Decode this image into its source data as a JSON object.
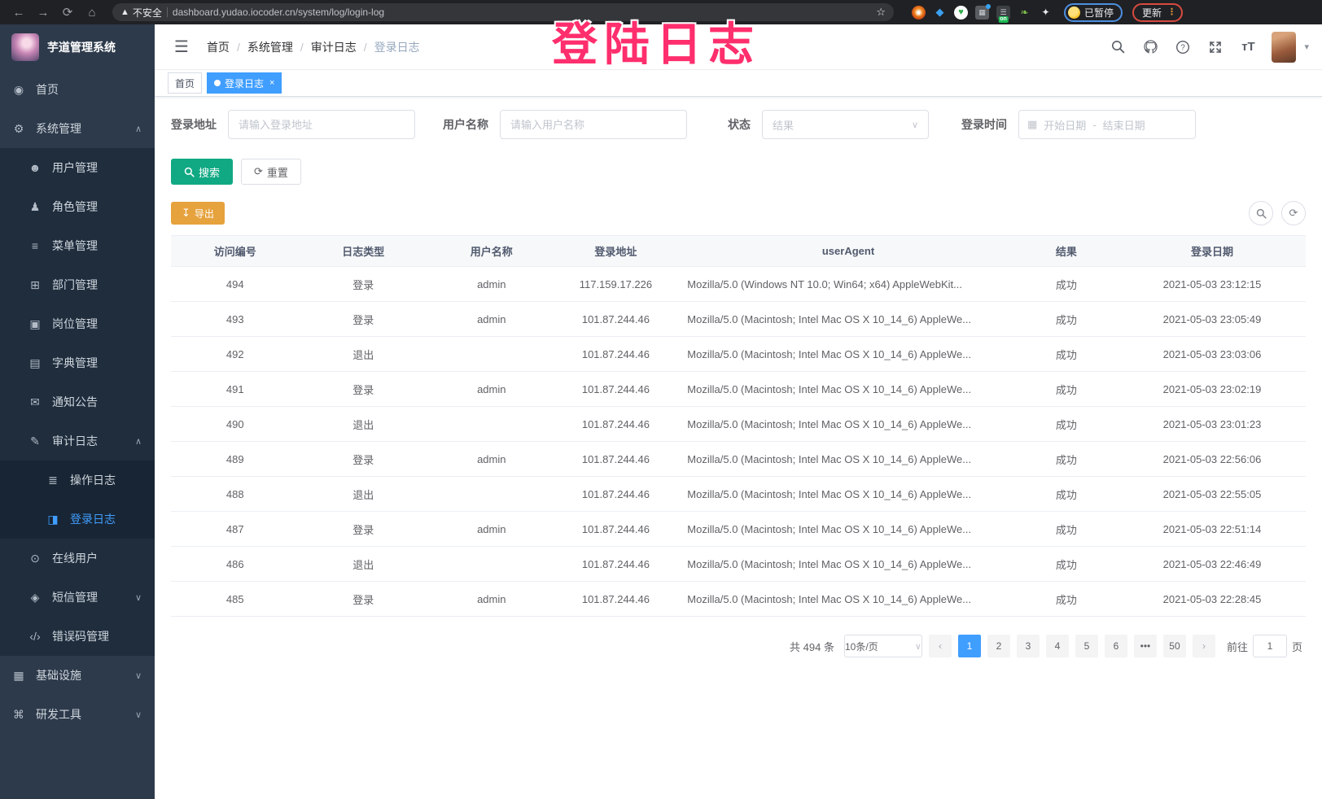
{
  "browser": {
    "security_label": "不安全",
    "url": "dashboard.yudao.iocoder.cn/system/log/login-log",
    "extension_badge": "on",
    "paused_badge": "已暂停",
    "update_button": "更新"
  },
  "overlay": {
    "text": "登陆日志"
  },
  "icons": {
    "dashboard-icon": "◉",
    "gear-icon": "⚙",
    "user-icon": "☻",
    "roles-icon": "♟",
    "menu-list-icon": "≡",
    "dept-tree-icon": "⊞",
    "post-icon": "▣",
    "dict-icon": "▤",
    "notice-icon": "✉",
    "audit-log-icon": "✎",
    "operation-log-icon": "≣",
    "login-log-icon": "◨",
    "online-users-icon": "⊙",
    "sms-icon": "◈",
    "error-code-icon": "‹/›",
    "infrastructure-icon": "▦",
    "devtools-icon": "⌘"
  },
  "sidebar": {
    "app_title": "芋道管理系统",
    "menu": [
      {
        "id": "home",
        "label": "首页",
        "icon": "dashboard-icon",
        "level": 1
      },
      {
        "id": "system",
        "label": "系统管理",
        "icon": "gear-icon",
        "level": 1,
        "arrow": "up"
      },
      {
        "id": "users",
        "label": "用户管理",
        "icon": "user-icon",
        "level": 2
      },
      {
        "id": "roles",
        "label": "角色管理",
        "icon": "roles-icon",
        "level": 2
      },
      {
        "id": "menus",
        "label": "菜单管理",
        "icon": "menu-list-icon",
        "level": 2
      },
      {
        "id": "depts",
        "label": "部门管理",
        "icon": "dept-tree-icon",
        "level": 2
      },
      {
        "id": "posts",
        "label": "岗位管理",
        "icon": "post-icon",
        "level": 2
      },
      {
        "id": "dicts",
        "label": "字典管理",
        "icon": "dict-icon",
        "level": 2
      },
      {
        "id": "notices",
        "label": "通知公告",
        "icon": "notice-icon",
        "level": 2
      },
      {
        "id": "audit-log",
        "label": "审计日志",
        "icon": "audit-log-icon",
        "level": 2,
        "arrow": "up"
      },
      {
        "id": "operation-log",
        "label": "操作日志",
        "icon": "operation-log-icon",
        "level": 3
      },
      {
        "id": "login-log",
        "label": "登录日志",
        "icon": "login-log-icon",
        "level": 3,
        "active": true
      },
      {
        "id": "online-users",
        "label": "在线用户",
        "icon": "online-users-icon",
        "level": 2
      },
      {
        "id": "sms",
        "label": "短信管理",
        "icon": "sms-icon",
        "level": 2,
        "arrow": "down"
      },
      {
        "id": "error-codes",
        "label": "错误码管理",
        "icon": "error-code-icon",
        "level": 2
      },
      {
        "id": "infrastructure",
        "label": "基础设施",
        "icon": "infrastructure-icon",
        "level": 1,
        "arrow": "down"
      },
      {
        "id": "devtools",
        "label": "研发工具",
        "icon": "devtools-icon",
        "level": 1,
        "arrow": "down"
      }
    ]
  },
  "header": {
    "breadcrumb": [
      "首页",
      "系统管理",
      "审计日志",
      "登录日志"
    ]
  },
  "tabs": [
    {
      "label": "首页",
      "active": false,
      "closable": false
    },
    {
      "label": "登录日志",
      "active": true,
      "closable": true
    }
  ],
  "filters": {
    "address_label": "登录地址",
    "address_placeholder": "请输入登录地址",
    "username_label": "用户名称",
    "username_placeholder": "请输入用户名称",
    "status_label": "状态",
    "status_placeholder": "结果",
    "time_label": "登录时间",
    "date_start_placeholder": "开始日期",
    "range_separator": "-",
    "date_end_placeholder": "结束日期"
  },
  "actions": {
    "search_label": "搜索",
    "reset_label": "重置",
    "export_label": "导出"
  },
  "table": {
    "columns": [
      "访问编号",
      "日志类型",
      "用户名称",
      "登录地址",
      "userAgent",
      "结果",
      "登录日期"
    ],
    "rows": [
      {
        "id": "494",
        "type": "登录",
        "username": "admin",
        "ip": "117.159.17.226",
        "user_agent": "Mozilla/5.0 (Windows NT 10.0; Win64; x64) AppleWebKit...",
        "result": "成功",
        "date": "2021-05-03 23:12:15"
      },
      {
        "id": "493",
        "type": "登录",
        "username": "admin",
        "ip": "101.87.244.46",
        "user_agent": "Mozilla/5.0 (Macintosh; Intel Mac OS X 10_14_6) AppleWe...",
        "result": "成功",
        "date": "2021-05-03 23:05:49"
      },
      {
        "id": "492",
        "type": "退出",
        "username": "",
        "ip": "101.87.244.46",
        "user_agent": "Mozilla/5.0 (Macintosh; Intel Mac OS X 10_14_6) AppleWe...",
        "result": "成功",
        "date": "2021-05-03 23:03:06"
      },
      {
        "id": "491",
        "type": "登录",
        "username": "admin",
        "ip": "101.87.244.46",
        "user_agent": "Mozilla/5.0 (Macintosh; Intel Mac OS X 10_14_6) AppleWe...",
        "result": "成功",
        "date": "2021-05-03 23:02:19"
      },
      {
        "id": "490",
        "type": "退出",
        "username": "",
        "ip": "101.87.244.46",
        "user_agent": "Mozilla/5.0 (Macintosh; Intel Mac OS X 10_14_6) AppleWe...",
        "result": "成功",
        "date": "2021-05-03 23:01:23"
      },
      {
        "id": "489",
        "type": "登录",
        "username": "admin",
        "ip": "101.87.244.46",
        "user_agent": "Mozilla/5.0 (Macintosh; Intel Mac OS X 10_14_6) AppleWe...",
        "result": "成功",
        "date": "2021-05-03 22:56:06"
      },
      {
        "id": "488",
        "type": "退出",
        "username": "",
        "ip": "101.87.244.46",
        "user_agent": "Mozilla/5.0 (Macintosh; Intel Mac OS X 10_14_6) AppleWe...",
        "result": "成功",
        "date": "2021-05-03 22:55:05"
      },
      {
        "id": "487",
        "type": "登录",
        "username": "admin",
        "ip": "101.87.244.46",
        "user_agent": "Mozilla/5.0 (Macintosh; Intel Mac OS X 10_14_6) AppleWe...",
        "result": "成功",
        "date": "2021-05-03 22:51:14"
      },
      {
        "id": "486",
        "type": "退出",
        "username": "",
        "ip": "101.87.244.46",
        "user_agent": "Mozilla/5.0 (Macintosh; Intel Mac OS X 10_14_6) AppleWe...",
        "result": "成功",
        "date": "2021-05-03 22:46:49"
      },
      {
        "id": "485",
        "type": "登录",
        "username": "admin",
        "ip": "101.87.244.46",
        "user_agent": "Mozilla/5.0 (Macintosh; Intel Mac OS X 10_14_6) AppleWe...",
        "result": "成功",
        "date": "2021-05-03 22:28:45"
      }
    ]
  },
  "pagination": {
    "total_label": "共 494 条",
    "page_size_label": "10条/页",
    "pages": [
      "1",
      "2",
      "3",
      "4",
      "5",
      "6",
      "•••",
      "50"
    ],
    "current_page": "1",
    "goto_label": "前往",
    "goto_value": "1",
    "page_suffix": "页"
  }
}
